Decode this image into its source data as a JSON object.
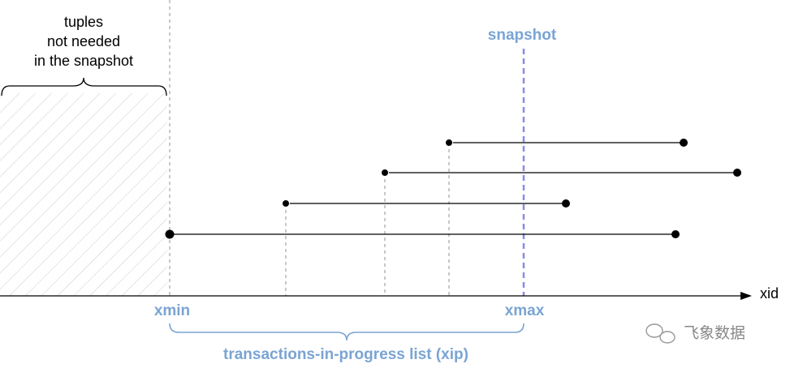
{
  "annotation": {
    "lines": [
      "tuples",
      "not needed",
      "in the snapshot"
    ]
  },
  "snapshot": {
    "label": "snapshot"
  },
  "axis": {
    "label": "xid",
    "xmin": "xmin",
    "xmax": "xmax"
  },
  "xip": {
    "label": "transactions-in-progress list (xip)"
  },
  "watermark": {
    "text": "飞象数据"
  }
}
